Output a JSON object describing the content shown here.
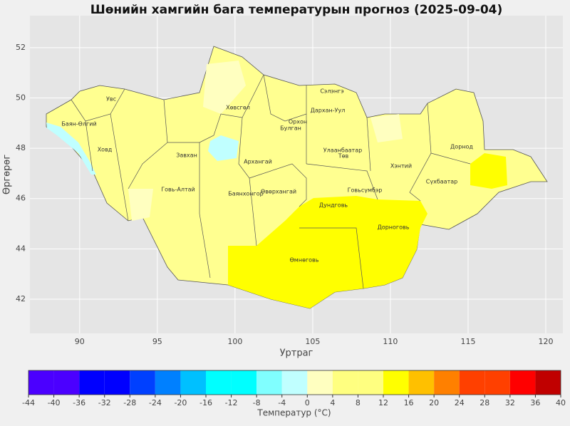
{
  "title": "Шөнийн хамгийн бага температурын прогноз (2025-09-04)",
  "map": {
    "xlabel": "Уртраг",
    "ylabel": "Өргөрөг",
    "xlim": [
      86.8,
      121.1
    ],
    "ylim": [
      40.64,
      53.27
    ],
    "xticks": [
      90,
      95,
      100,
      105,
      110,
      115,
      120
    ],
    "yticks": [
      42,
      44,
      46,
      48,
      50,
      52
    ],
    "grid": true,
    "regions": [
      "Увс",
      "Баян-Өлгий",
      "Ховд",
      "Завхан",
      "Хөвсгөл",
      "Архангай",
      "Говь-Алтай",
      "Баянхонгор",
      "Өвөрхангай",
      "Орхон",
      "Булган",
      "Дархан-Уул",
      "Сэлэнгэ",
      "Улаанбаатар",
      "Төв",
      "Дундговь",
      "Говьсүмбэр",
      "Хэнтий",
      "Дорнод",
      "Сүхбаатар",
      "Дорноговь",
      "Өмнөговь"
    ]
  },
  "colorbar": {
    "label": "Температур (°C)",
    "levels": [
      -44,
      -40,
      -36,
      -32,
      -28,
      -24,
      -20,
      -16,
      -12,
      -8,
      -4,
      0,
      4,
      8,
      12,
      16,
      20,
      24,
      28,
      32,
      36,
      40
    ],
    "colors": [
      "#4b00ff",
      "#4b00ff",
      "#0000ff",
      "#0000ff",
      "#0040ff",
      "#0080ff",
      "#00c0ff",
      "#00ffff",
      "#00ffff",
      "#80ffff",
      "#c0ffff",
      "#ffffc0",
      "#ffff80",
      "#ffff80",
      "#ffff00",
      "#ffc000",
      "#ff8000",
      "#ff4000",
      "#ff4000",
      "#ff0000",
      "#c00000"
    ]
  }
}
